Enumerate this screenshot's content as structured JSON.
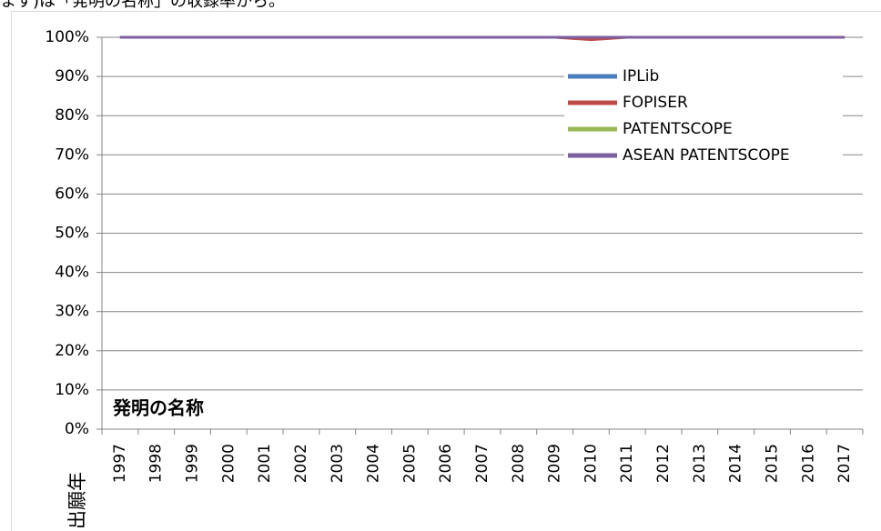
{
  "caption": "ます)は「発明の名称」の収録率から。",
  "chart_data": {
    "type": "line",
    "annotation": "発明の名称",
    "x_label": "出願年",
    "categories": [
      "1997",
      "1998",
      "1999",
      "2000",
      "2001",
      "2002",
      "2003",
      "2004",
      "2005",
      "2006",
      "2007",
      "2008",
      "2009",
      "2010",
      "2011",
      "2012",
      "2013",
      "2014",
      "2015",
      "2016",
      "2017"
    ],
    "series": [
      {
        "name": "IPLib",
        "color": "#4a7ebb",
        "values": [
          100,
          100,
          100,
          100,
          100,
          100,
          100,
          100,
          100,
          100,
          100,
          100,
          100,
          100,
          100,
          100,
          100,
          100,
          100,
          100,
          100
        ]
      },
      {
        "name": "FOPISER",
        "color": "#be4b48",
        "values": [
          100,
          100,
          100,
          100,
          100,
          100,
          100,
          100,
          100,
          100,
          100,
          100,
          100,
          99.4,
          100,
          100,
          100,
          100,
          100,
          100,
          100
        ]
      },
      {
        "name": "PATENTSCOPE",
        "color": "#98b954",
        "values": [
          100,
          100,
          100,
          100,
          100,
          100,
          100,
          100,
          100,
          100,
          100,
          100,
          100,
          100,
          100,
          100,
          100,
          100,
          100,
          100,
          100
        ]
      },
      {
        "name": "ASEAN PATENTSCOPE",
        "color": "#7d5fa0",
        "values": [
          100,
          100,
          100,
          100,
          100,
          100,
          100,
          100,
          100,
          100,
          100,
          100,
          100,
          100,
          100,
          100,
          100,
          100,
          100,
          100,
          100
        ]
      }
    ],
    "ylim": [
      0,
      100
    ],
    "yticks": [
      {
        "value": 0,
        "label": "0%"
      },
      {
        "value": 10,
        "label": "10%"
      },
      {
        "value": 20,
        "label": "20%"
      },
      {
        "value": 30,
        "label": "30%"
      },
      {
        "value": 40,
        "label": "40%"
      },
      {
        "value": 50,
        "label": "50%"
      },
      {
        "value": 60,
        "label": "60%"
      },
      {
        "value": 70,
        "label": "70%"
      },
      {
        "value": 80,
        "label": "80%"
      },
      {
        "value": 90,
        "label": "90%"
      },
      {
        "value": 100,
        "label": "100%"
      }
    ],
    "grid": true,
    "legend": "upper right"
  }
}
